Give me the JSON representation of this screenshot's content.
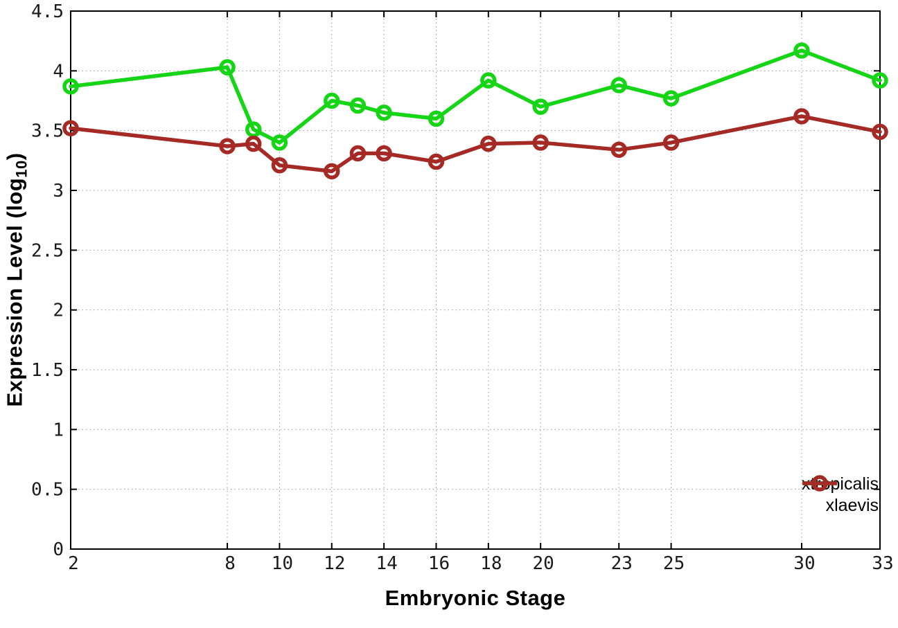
{
  "chart_data": {
    "type": "line",
    "title": "",
    "xlabel": "Embryonic Stage",
    "ylabel": "Expression Level (log10)",
    "ylabel_main": "Expression Level (log",
    "ylabel_sub": "10",
    "ylabel_close": ")",
    "x": [
      2,
      8,
      9,
      10,
      12,
      13,
      14,
      16,
      18,
      20,
      23,
      25,
      30,
      33
    ],
    "series": [
      {
        "name": "xtropicalis",
        "color": "#16d516",
        "values": [
          3.87,
          4.03,
          3.51,
          3.4,
          3.75,
          3.71,
          3.65,
          3.6,
          3.92,
          3.7,
          3.88,
          3.77,
          4.17,
          3.92
        ]
      },
      {
        "name": "xlaevis",
        "color": "#a52a26",
        "values": [
          3.52,
          3.37,
          3.39,
          3.21,
          3.16,
          3.31,
          3.31,
          3.24,
          3.39,
          3.4,
          3.34,
          3.4,
          3.62,
          3.49
        ]
      }
    ],
    "xticks": [
      2,
      8,
      10,
      12,
      14,
      16,
      18,
      20,
      23,
      25,
      30,
      33
    ],
    "xtick_labels": [
      "2",
      "8",
      "10",
      "12",
      "14",
      "16",
      "18",
      "20",
      "23",
      "25",
      "30",
      "33"
    ],
    "yticks": [
      0,
      0.5,
      1,
      1.5,
      2,
      2.5,
      3,
      3.5,
      4,
      4.5
    ],
    "ytick_labels": [
      "0",
      "0.5",
      "1",
      "1.5",
      "2",
      "2.5",
      "3",
      "3.5",
      "4",
      "4.5"
    ],
    "xlim": [
      2,
      33
    ],
    "ylim": [
      0,
      4.5
    ],
    "grid": true,
    "legend_position": "bottom-right",
    "marker": "open-circle",
    "background": "#ffffff",
    "grid_color": "#999999",
    "border_color": "#000000",
    "tick_label_color": "#1a1a1a"
  }
}
